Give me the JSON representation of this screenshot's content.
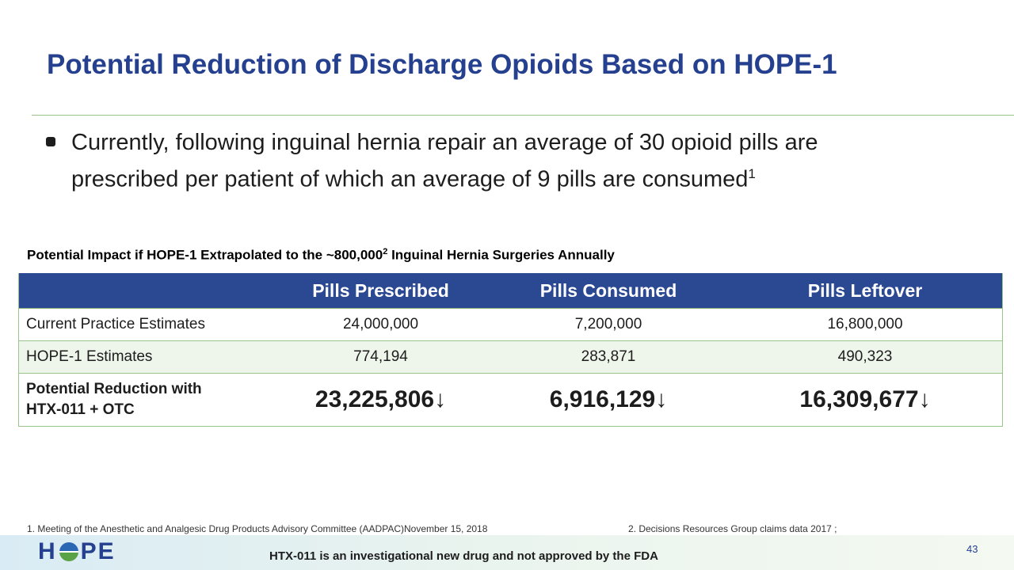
{
  "title": "Potential Reduction of Discharge Opioids Based on HOPE-1",
  "bullet": {
    "text": "Currently, following inguinal hernia repair an average of 30 opioid pills are prescribed per patient of which an average of 9 pills are consumed",
    "superscript": "1"
  },
  "table": {
    "caption_before": "Potential Impact if HOPE-1 Extrapolated to the ~800,000",
    "caption_sup": "2",
    "caption_after": " Inguinal Hernia Surgeries Annually",
    "headers": [
      "",
      "Pills Prescribed",
      "Pills Consumed",
      "Pills Leftover"
    ],
    "rows": [
      {
        "label": "Current Practice Estimates",
        "values": [
          "24,000,000",
          "7,200,000",
          "16,800,000"
        ]
      },
      {
        "label": "HOPE-1 Estimates",
        "values": [
          "774,194",
          "283,871",
          "490,323"
        ]
      },
      {
        "label_line1": "Potential Reduction with",
        "label_line2": "HTX-011 + OTC",
        "values": [
          "23,225,806",
          "6,916,129",
          "16,309,677"
        ],
        "arrow": "↓"
      }
    ]
  },
  "footnotes": [
    "1.   Meeting of the Anesthetic and Analgesic Drug Products Advisory Committee (AADPAC)November 15, 2018",
    "2.   Decisions Resources Group claims data 2017 ;"
  ],
  "footer": {
    "logo_left": "H",
    "logo_right": "PE",
    "disclaimer": "HTX-011 is an investigational new drug and not approved by the FDA",
    "page_number": "43"
  }
}
